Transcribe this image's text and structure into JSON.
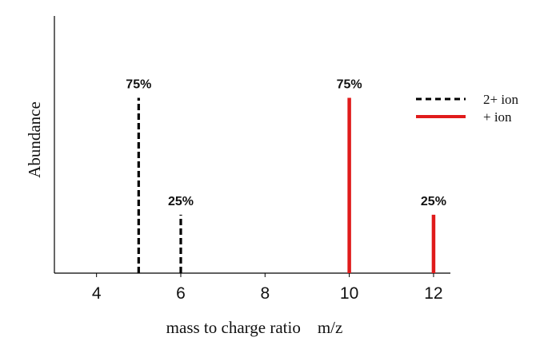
{
  "chart_data": {
    "type": "bar",
    "xlabel": "mass to charge ratio    m/z",
    "ylabel": "Abundance",
    "xlim": [
      3,
      12.4
    ],
    "ylim": [
      0,
      1.1
    ],
    "xticks": [
      4,
      6,
      8,
      10,
      12
    ],
    "grid": false,
    "legend_position": "right",
    "series": [
      {
        "name": "2+ ion",
        "style": "dashed",
        "color": "#000000",
        "x": [
          5,
          6
        ],
        "values": [
          0.75,
          0.25
        ],
        "labels": [
          "75%",
          "25%"
        ]
      },
      {
        "name": "+ ion",
        "style": "solid",
        "color": "#e01b1b",
        "x": [
          10,
          12
        ],
        "values": [
          0.75,
          0.25
        ],
        "labels": [
          "75%",
          "25%"
        ]
      }
    ]
  }
}
